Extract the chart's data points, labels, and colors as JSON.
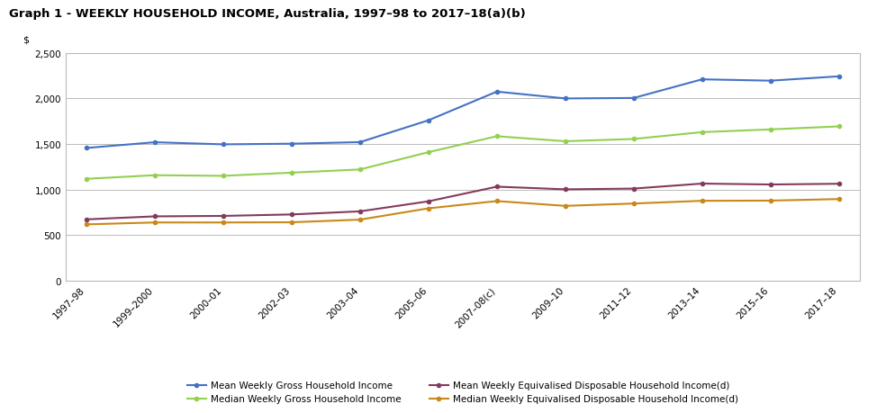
{
  "title": "Graph 1 - WEEKLY HOUSEHOLD INCOME, Australia, 1997–98 to 2017–18(a)(b)",
  "ylabel": "$",
  "ylim": [
    0,
    2500
  ],
  "yticks": [
    0,
    500,
    1000,
    1500,
    2000,
    2500
  ],
  "x_labels": [
    "1997–98",
    "1999–2000",
    "2000–01",
    "2002–03",
    "2003–04",
    "2005–06",
    "2007–08(c)",
    "2009–10",
    "2011–12",
    "2013–14",
    "2015–16",
    "2017–18"
  ],
  "series_order": [
    "mean_gross",
    "median_gross",
    "mean_equiv_disp",
    "median_equiv_disp"
  ],
  "series": {
    "mean_gross": {
      "label": "Mean Weekly Gross Household Income",
      "color": "#4472C4",
      "values": [
        1456,
        1519,
        1496,
        1503,
        1520,
        1760,
        2075,
        2000,
        2005,
        2210,
        2195,
        2243
      ]
    },
    "median_gross": {
      "label": "Median Weekly Gross Household Income",
      "color": "#92D050",
      "values": [
        1117,
        1157,
        1150,
        1185,
        1220,
        1410,
        1585,
        1530,
        1555,
        1630,
        1660,
        1693
      ]
    },
    "mean_equiv_disp": {
      "label": "Mean Weekly Equivalised Disposable Household Income(d)",
      "color": "#833B5C",
      "values": [
        672,
        705,
        710,
        726,
        760,
        870,
        1031,
        1002,
        1010,
        1065,
        1055,
        1063
      ]
    },
    "median_equiv_disp": {
      "label": "Median Weekly Equivalised Disposable Household Income(d)",
      "color": "#C9891A",
      "values": [
        617,
        638,
        638,
        640,
        669,
        793,
        873,
        820,
        846,
        876,
        878,
        895
      ]
    }
  },
  "legend_order": [
    "mean_gross",
    "median_gross",
    "mean_equiv_disp",
    "median_equiv_disp"
  ],
  "background_color": "#FFFFFF",
  "plot_bg_color": "#FFFFFF",
  "grid_color": "#BBBBBB",
  "title_fontsize": 9.5,
  "legend_fontsize": 7.5,
  "tick_fontsize": 7.5,
  "ylabel_fontsize": 8
}
